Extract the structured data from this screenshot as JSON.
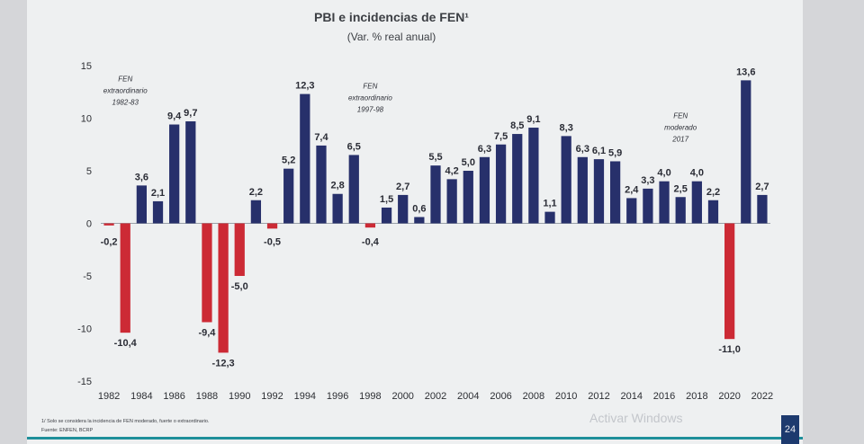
{
  "slide": {
    "footnote": "1/ Solo se considera la incidencia de FEN moderado, fuerte o extraordinario.",
    "source": "Fuente: ENFEN, BCRP",
    "page_number": "24",
    "watermark": "Activar Windows"
  },
  "chart_data": {
    "type": "bar",
    "title": "PBI e incidencias de FEN¹",
    "subtitle": "(Var. % real anual)",
    "categories": [
      "1982",
      "1983",
      "1984",
      "1985",
      "1986",
      "1987",
      "1988",
      "1989",
      "1990",
      "1991",
      "1992",
      "1993",
      "1994",
      "1995",
      "1996",
      "1997",
      "1998",
      "1999",
      "2000",
      "2001",
      "2002",
      "2003",
      "2004",
      "2005",
      "2006",
      "2007",
      "2008",
      "2009",
      "2010",
      "2011",
      "2012",
      "2013",
      "2014",
      "2015",
      "2016",
      "2017",
      "2018",
      "2019",
      "2020",
      "2021",
      "2022"
    ],
    "values": [
      -0.2,
      -10.4,
      3.6,
      2.1,
      9.4,
      9.7,
      -9.4,
      -12.3,
      -5.0,
      2.2,
      -0.5,
      5.2,
      12.3,
      7.4,
      2.8,
      6.5,
      -0.4,
      1.5,
      2.7,
      0.6,
      5.5,
      4.2,
      5.0,
      6.3,
      7.5,
      8.5,
      9.1,
      1.1,
      8.3,
      6.3,
      6.1,
      5.9,
      2.4,
      3.3,
      4.0,
      2.5,
      4.0,
      2.2,
      -11.0,
      13.6,
      2.7
    ],
    "value_labels": [
      "-0,2",
      "-10,4",
      "3,6",
      "2,1",
      "9,4",
      "9,7",
      "-9,4",
      "-12,3",
      "-5,0",
      "2,2",
      "-0,5",
      "5,2",
      "12,3",
      "7,4",
      "2,8",
      "6,5",
      "-0,4",
      "1,5",
      "2,7",
      "0,6",
      "5,5",
      "4,2",
      "5,0",
      "6,3",
      "7,5",
      "8,5",
      "9,1",
      "1,1",
      "8,3",
      "6,3",
      "6,1",
      "5,9",
      "2,4",
      "3,3",
      "4,0",
      "2,5",
      "4,0",
      "2,2",
      "-11,0",
      "13,6",
      "2,7"
    ],
    "x_tick_labels": [
      "1982",
      "1984",
      "1986",
      "1988",
      "1990",
      "1992",
      "1994",
      "1996",
      "1998",
      "2000",
      "2002",
      "2004",
      "2006",
      "2008",
      "2010",
      "2012",
      "2014",
      "2016",
      "2018",
      "2020",
      "2022"
    ],
    "y_tick_labels": [
      "15",
      "10",
      "5",
      "0",
      "-5",
      "-10",
      "-15"
    ],
    "y_ticks": [
      15,
      10,
      5,
      0,
      -5,
      -10,
      -15
    ],
    "ylim": [
      -15,
      15
    ],
    "xlabel": "",
    "ylabel": "",
    "colors": {
      "positive": "#27306b",
      "negative": "#cc2a35"
    },
    "annotations": [
      {
        "lines": [
          "FEN",
          "extraordinario",
          "1982-83"
        ],
        "category": "1983",
        "value": 13.5
      },
      {
        "lines": [
          "FEN",
          "extraordinario",
          "1997-98"
        ],
        "category": "1998",
        "value": 12.8
      },
      {
        "lines": [
          "FEN",
          "moderado",
          "2017"
        ],
        "category": "2017",
        "value": 10.0
      }
    ]
  }
}
